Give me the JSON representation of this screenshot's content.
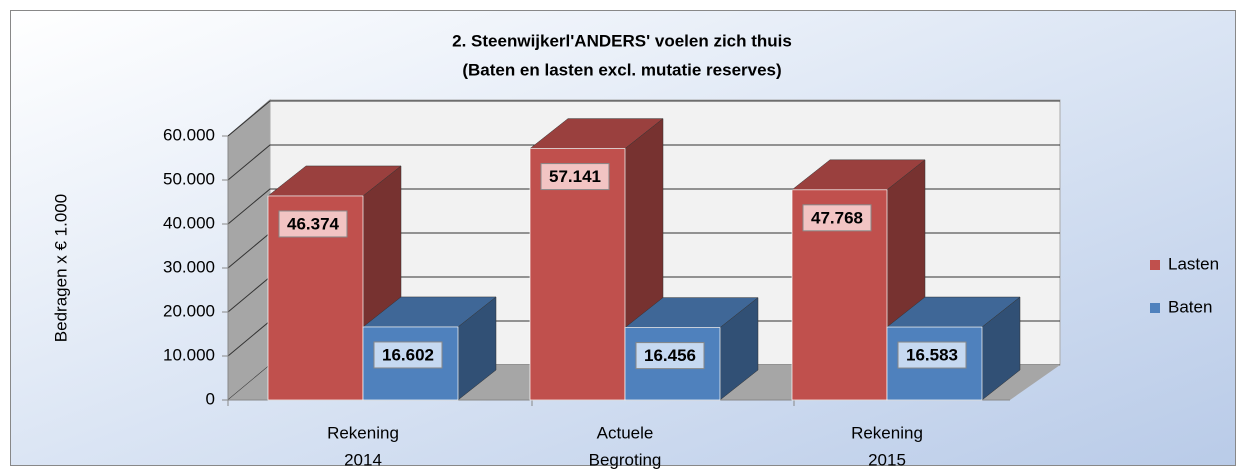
{
  "chart_data": {
    "type": "bar3d",
    "title": [
      "2. Steenwijkerl'ANDERS' voelen zich thuis",
      "(Baten en lasten excl. mutatie reserves)"
    ],
    "y_label": "Bedragen x € 1.000",
    "categories": [
      [
        "Rekening",
        "2014"
      ],
      [
        "Actuele",
        "Begroting"
      ],
      [
        "Rekening",
        "2015"
      ]
    ],
    "series": [
      {
        "name": "Lasten",
        "color": "#c0504d",
        "values": [
          46374,
          57141,
          47768
        ],
        "value_labels": [
          "46.374",
          "57.141",
          "47.768"
        ]
      },
      {
        "name": "Baten",
        "color": "#4f81bd",
        "values": [
          16602,
          16456,
          16583
        ],
        "value_labels": [
          "16.602",
          "16.456",
          "16.583"
        ]
      }
    ],
    "ylim": [
      0,
      60000
    ],
    "yticks": [
      0,
      {
        "value": 10000,
        "label": "10.000"
      },
      {
        "value": 20000,
        "label": "20.000"
      },
      {
        "value": 30000,
        "label": "30.000"
      },
      {
        "value": 40000,
        "label": "40.000"
      },
      {
        "value": 50000,
        "label": "50.000"
      },
      {
        "value": 60000,
        "label": "60.000"
      }
    ],
    "grid": true,
    "legend": "right"
  }
}
